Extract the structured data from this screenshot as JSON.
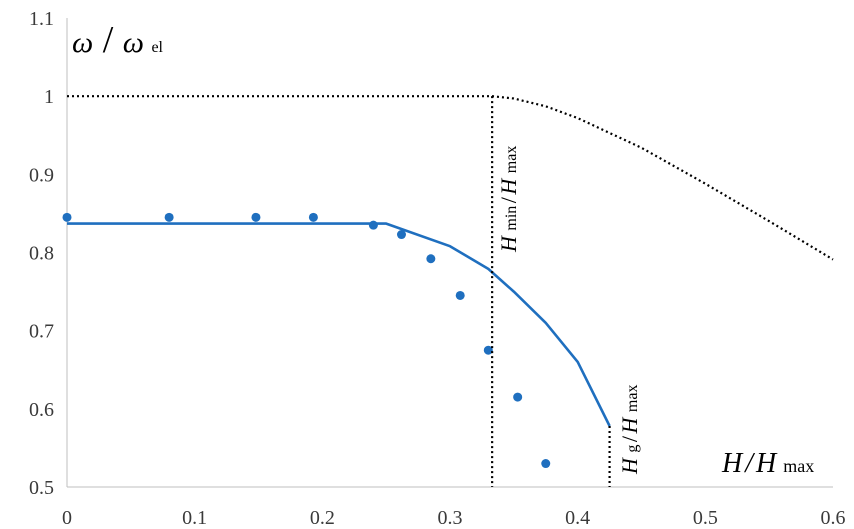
{
  "chart_data": {
    "type": "line",
    "xlim": [
      0,
      0.6
    ],
    "ylim": [
      0.5,
      1.1
    ],
    "x_ticks": [
      "0",
      "0.1",
      "0.2",
      "0.3",
      "0.4",
      "0.5",
      "0.6"
    ],
    "y_ticks": [
      "0.5",
      "0.6",
      "0.7",
      "0.8",
      "0.9",
      "1",
      "1.1"
    ],
    "grid": false,
    "ylabel": {
      "omega": "ω",
      "slash": "/",
      "omega_el": "ω",
      "el_sub": "el"
    },
    "xlabel": {
      "H": "H",
      "slash": "/",
      "H2": "H",
      "max_sub": "max"
    },
    "annotations": {
      "hmin": {
        "H": "H",
        "min_sub": "min",
        "slash": "/",
        "H2": "H",
        "max_sub": "max"
      },
      "hg": {
        "H": "H",
        "g_sub": "g",
        "slash": "/",
        "H2": "H",
        "max_sub": "max"
      }
    },
    "series": [
      {
        "style": "solid-line",
        "color": "#1f6fbf",
        "x": [
          0,
          0.05,
          0.1,
          0.15,
          0.2,
          0.25,
          0.3,
          0.33,
          0.35,
          0.375,
          0.4,
          0.425
        ],
        "y": [
          0.837,
          0.837,
          0.837,
          0.837,
          0.837,
          0.837,
          0.808,
          0.779,
          0.75,
          0.71,
          0.66,
          0.578
        ]
      },
      {
        "style": "markers",
        "color": "#1f6fbf",
        "x": [
          0,
          0.08,
          0.148,
          0.193,
          0.24,
          0.262,
          0.285,
          0.308,
          0.33,
          0.353,
          0.375
        ],
        "y": [
          0.845,
          0.845,
          0.845,
          0.845,
          0.835,
          0.823,
          0.792,
          0.745,
          0.675,
          0.615,
          0.53
        ]
      },
      {
        "style": "dotted-line",
        "color": "#000000",
        "x": [
          0,
          0.1,
          0.2,
          0.3,
          0.333,
          0.35,
          0.375,
          0.4,
          0.45,
          0.5,
          0.55,
          0.6
        ],
        "y": [
          1.0,
          1.0,
          1.0,
          1.0,
          1.0,
          0.997,
          0.987,
          0.972,
          0.934,
          0.888,
          0.84,
          0.791
        ]
      }
    ],
    "vertical_markers": [
      {
        "x": 0.333,
        "y_top": 1.0
      },
      {
        "x": 0.425,
        "y_top": 0.578
      }
    ]
  }
}
